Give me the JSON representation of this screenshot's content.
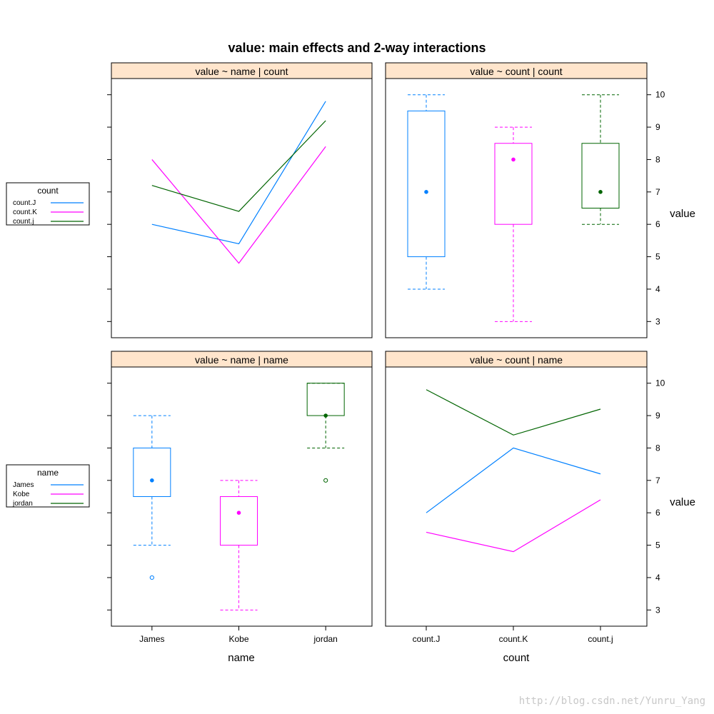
{
  "title": "value: main effects and 2-way interactions",
  "colors": {
    "J": "#0080FF",
    "K": "#FF00FF",
    "j": "#006400",
    "strip": "#FFE5CC"
  },
  "chart_data": [
    {
      "type": "line",
      "strip": "value ~ name | count",
      "categories": [
        "James",
        "Kobe",
        "jordan"
      ],
      "ylim": [
        2.5,
        10.5
      ],
      "series": [
        {
          "name": "count.J",
          "color_key": "J",
          "values": [
            6.0,
            5.4,
            9.8
          ]
        },
        {
          "name": "count.K",
          "color_key": "K",
          "values": [
            8.0,
            4.8,
            8.4
          ]
        },
        {
          "name": "count.j",
          "color_key": "j",
          "values": [
            7.2,
            6.4,
            9.2
          ]
        }
      ]
    },
    {
      "type": "box",
      "strip": "value ~ count | count",
      "categories": [
        "count.J",
        "count.K",
        "count.j"
      ],
      "ylim": [
        2.5,
        10.5
      ],
      "boxes": [
        {
          "color_key": "J",
          "whisker_low": 4,
          "q1": 5,
          "median": 7,
          "q3": 9.5,
          "whisker_high": 10,
          "outliers": []
        },
        {
          "color_key": "K",
          "whisker_low": 3,
          "q1": 6,
          "median": 8,
          "q3": 8.5,
          "whisker_high": 9,
          "outliers": []
        },
        {
          "color_key": "j",
          "whisker_low": 6,
          "q1": 6.5,
          "median": 7,
          "q3": 8.5,
          "whisker_high": 10,
          "outliers": []
        }
      ]
    },
    {
      "type": "box",
      "strip": "value ~ name | name",
      "categories": [
        "James",
        "Kobe",
        "jordan"
      ],
      "ylim": [
        2.5,
        10.5
      ],
      "boxes": [
        {
          "color_key": "J",
          "whisker_low": 5,
          "q1": 6.5,
          "median": 7,
          "q3": 8,
          "whisker_high": 9,
          "outliers": [
            4
          ]
        },
        {
          "color_key": "K",
          "whisker_low": 3,
          "q1": 5,
          "median": 6,
          "q3": 6.5,
          "whisker_high": 7,
          "outliers": []
        },
        {
          "color_key": "j",
          "whisker_low": 8,
          "q1": 9,
          "median": 9,
          "q3": 10,
          "whisker_high": 10,
          "outliers": [
            7
          ]
        }
      ]
    },
    {
      "type": "line",
      "strip": "value ~ count | name",
      "categories": [
        "count.J",
        "count.K",
        "count.j"
      ],
      "ylim": [
        2.5,
        10.5
      ],
      "series": [
        {
          "name": "James",
          "color_key": "J",
          "values": [
            6.0,
            8.0,
            7.2
          ]
        },
        {
          "name": "Kobe",
          "color_key": "K",
          "values": [
            5.4,
            4.8,
            6.4
          ]
        },
        {
          "name": "jordan",
          "color_key": "j",
          "values": [
            9.8,
            8.4,
            9.2
          ]
        }
      ]
    }
  ],
  "y_ticks": [
    3,
    4,
    5,
    6,
    7,
    8,
    9,
    10
  ],
  "y_axis_label": "value",
  "x_axis_labels": {
    "left": "name",
    "right": "count"
  },
  "legends": [
    {
      "title": "count",
      "items": [
        {
          "label": "count.J",
          "color_key": "J"
        },
        {
          "label": "count.K",
          "color_key": "K"
        },
        {
          "label": "count.j",
          "color_key": "j"
        }
      ]
    },
    {
      "title": "name",
      "items": [
        {
          "label": "James",
          "color_key": "J"
        },
        {
          "label": "Kobe",
          "color_key": "K"
        },
        {
          "label": "jordan",
          "color_key": "j"
        }
      ]
    }
  ],
  "watermark": "http://blog.csdn.net/Yunru_Yang"
}
